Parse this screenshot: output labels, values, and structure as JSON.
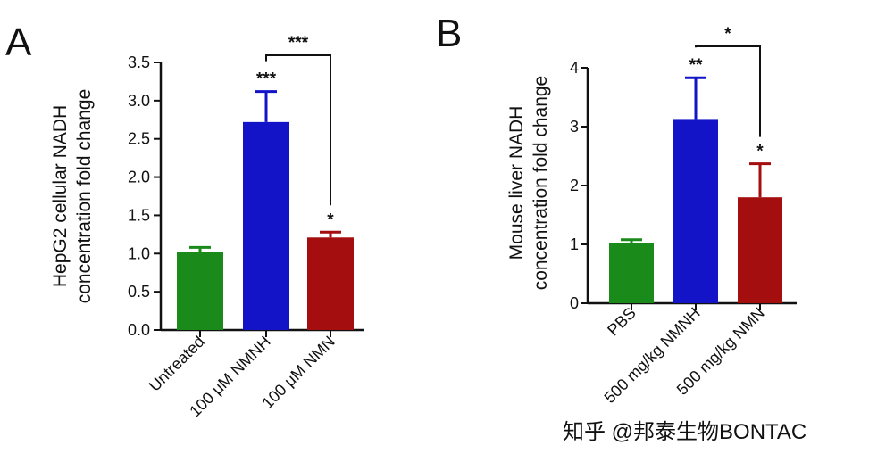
{
  "chart_data": [
    {
      "panel": "A",
      "type": "bar",
      "ylabel": [
        "HepG2 cellular NADH",
        "concentration fold change"
      ],
      "ylim": [
        0,
        3.5
      ],
      "yticks": [
        "0.0",
        "0.5",
        "1.0",
        "1.5",
        "2.0",
        "2.5",
        "3.0",
        "3.5"
      ],
      "categories": [
        "Untreated",
        "100 μM NMNH",
        "100 μM NMN"
      ],
      "values": [
        1.02,
        2.72,
        1.21
      ],
      "errors": [
        0.06,
        0.4,
        0.07
      ],
      "colors": [
        "#1a8a1a",
        "#1313c8",
        "#a40e0e"
      ],
      "stars": [
        "",
        "***",
        "*"
      ],
      "bracket": {
        "from": 1,
        "to": 2,
        "label": "***"
      },
      "grid": false
    },
    {
      "panel": "B",
      "type": "bar",
      "ylabel": [
        "Mouse liver NADH",
        "concentration fold change"
      ],
      "ylim": [
        0,
        4
      ],
      "yticks": [
        "0",
        "1",
        "2",
        "3",
        "4"
      ],
      "categories": [
        "PBS",
        "500 mg/kg NMNH",
        "500 mg/kg NMN"
      ],
      "values": [
        1.03,
        3.13,
        1.8
      ],
      "errors": [
        0.05,
        0.7,
        0.57
      ],
      "colors": [
        "#1a8a1a",
        "#1313c8",
        "#a40e0e"
      ],
      "stars": [
        "",
        "**",
        "*"
      ],
      "bracket": {
        "from": 1,
        "to": 2,
        "label": "*"
      },
      "grid": false
    }
  ],
  "watermark": "知乎 @邦泰生物BONTAC"
}
